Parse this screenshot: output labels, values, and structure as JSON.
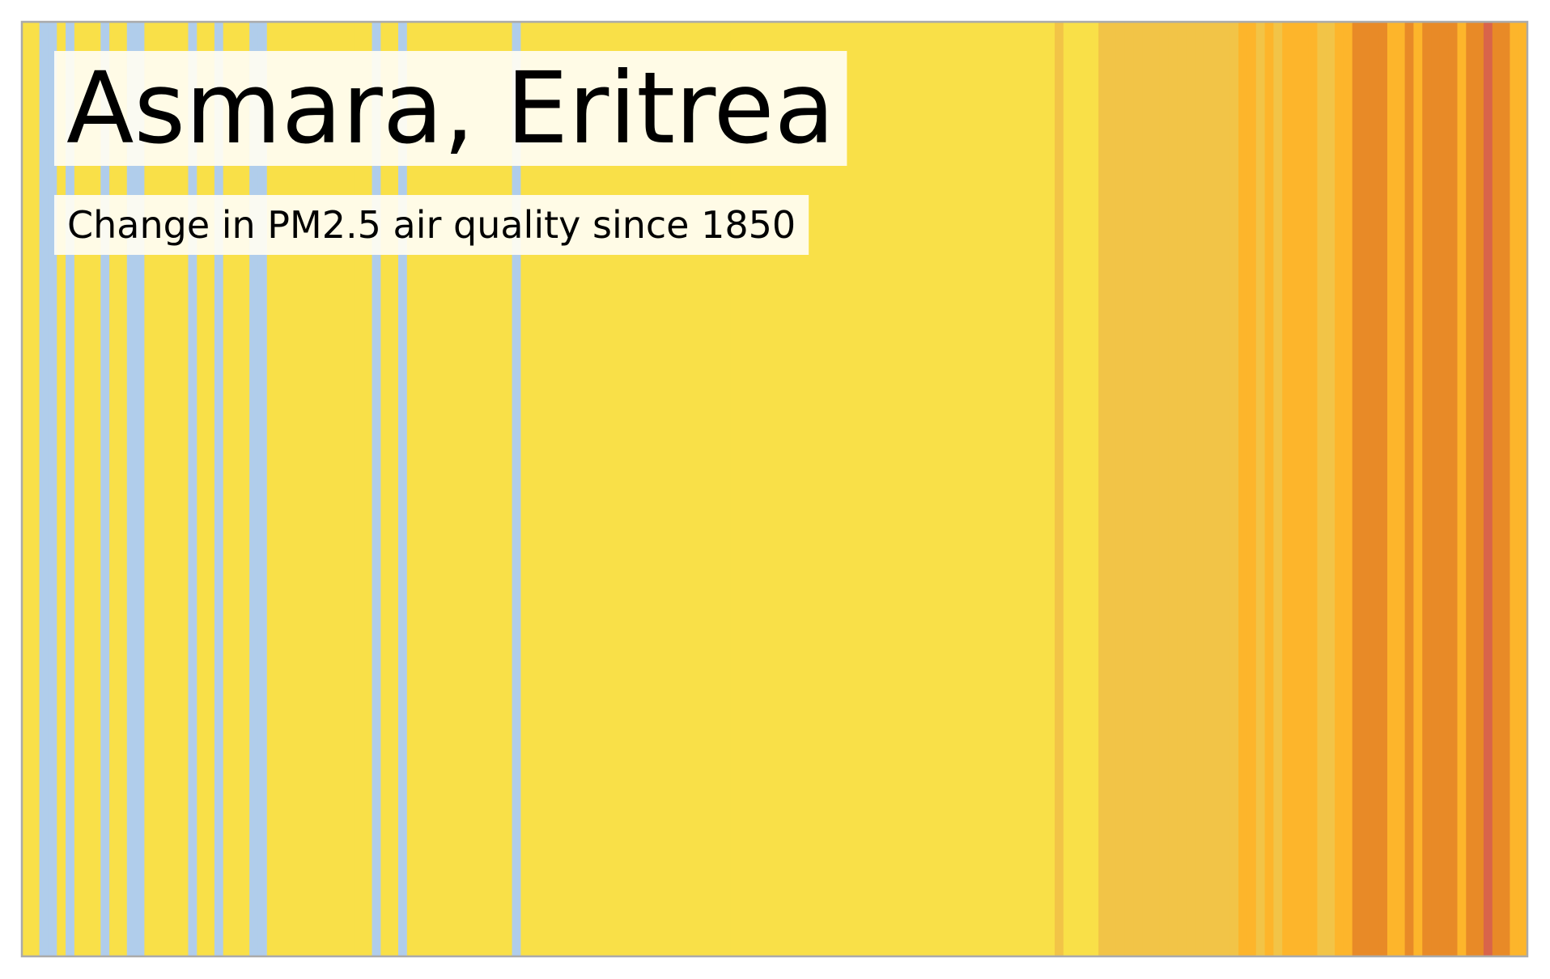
{
  "chart_data": {
    "type": "stripes",
    "title": "Asmara, Eritrea",
    "subtitle": "Change in PM2.5 air quality since 1850",
    "colors": [
      "#f9e048",
      "#f9e048",
      "#b0cdeb",
      "#b0cdeb",
      "#f9e048",
      "#b0cdeb",
      "#f9e048",
      "#f9e048",
      "#f9e048",
      "#b0cdeb",
      "#f9e048",
      "#f9e048",
      "#b0cdeb",
      "#b0cdeb",
      "#f9e048",
      "#f9e048",
      "#f9e048",
      "#f9e048",
      "#f9e048",
      "#b0cdeb",
      "#f9e048",
      "#f9e048",
      "#b0cdeb",
      "#f9e048",
      "#f9e048",
      "#f9e048",
      "#b0cdeb",
      "#b0cdeb",
      "#f9e048",
      "#f9e048",
      "#f9e048",
      "#f9e048",
      "#f9e048",
      "#f9e048",
      "#f9e048",
      "#f9e048",
      "#f9e048",
      "#f9e048",
      "#f9e048",
      "#f9e048",
      "#b0cdeb",
      "#f9e048",
      "#f9e048",
      "#b0cdeb",
      "#f9e048",
      "#f9e048",
      "#f9e048",
      "#f9e048",
      "#f9e048",
      "#f9e048",
      "#f9e048",
      "#f9e048",
      "#f9e048",
      "#f9e048",
      "#f9e048",
      "#f9e048",
      "#b0cdeb",
      "#f9e048",
      "#f9e048",
      "#f9e048",
      "#f9e048",
      "#f9e048",
      "#f9e048",
      "#f9e048",
      "#f9e048",
      "#f9e048",
      "#f9e048",
      "#f9e048",
      "#f9e048",
      "#f9e048",
      "#f9e048",
      "#f9e048",
      "#f9e048",
      "#f9e048",
      "#f9e048",
      "#f9e048",
      "#f9e048",
      "#f9e048",
      "#f9e048",
      "#f9e048",
      "#f9e048",
      "#f9e048",
      "#f9e048",
      "#f9e048",
      "#f9e048",
      "#f9e048",
      "#f9e048",
      "#f9e048",
      "#f9e048",
      "#f9e048",
      "#f9e048",
      "#f9e048",
      "#f9e048",
      "#f9e048",
      "#f9e048",
      "#f9e048",
      "#f9e048",
      "#f9e048",
      "#f9e048",
      "#f9e048",
      "#f9e048",
      "#f9e048",
      "#f9e048",
      "#f9e048",
      "#f9e048",
      "#f9e048",
      "#f9e048",
      "#f9e048",
      "#f9e048",
      "#f9e048",
      "#f9e048",
      "#f9e048",
      "#f9e048",
      "#f9e048",
      "#f9e048",
      "#f9e048",
      "#f9e048",
      "#f9e048",
      "#f2c447",
      "#f9e048",
      "#f9e048",
      "#f9e048",
      "#f9e048",
      "#f2c447",
      "#f2c447",
      "#f2c447",
      "#f2c447",
      "#f2c447",
      "#f2c447",
      "#f2c447",
      "#f2c447",
      "#f2c447",
      "#f2c447",
      "#f2c447",
      "#f2c447",
      "#f2c447",
      "#f2c447",
      "#f2c447",
      "#f2c447",
      "#fdb52b",
      "#fdb52b",
      "#f2c447",
      "#fdb52b",
      "#f2c447",
      "#fdb52b",
      "#fdb52b",
      "#fdb52b",
      "#fdb52b",
      "#f2c447",
      "#f2c447",
      "#fdb52b",
      "#fdb52b",
      "#e88a27",
      "#e88a27",
      "#e88a27",
      "#e88a27",
      "#fdb52b",
      "#fdb52b",
      "#e88a27",
      "#fdb52b",
      "#e88a27",
      "#e88a27",
      "#e88a27",
      "#e88a27",
      "#fdb52b",
      "#e88a27",
      "#e88a27",
      "#d9644a",
      "#e88a27",
      "#e88a27",
      "#fdb52b",
      "#fdb52b"
    ]
  }
}
